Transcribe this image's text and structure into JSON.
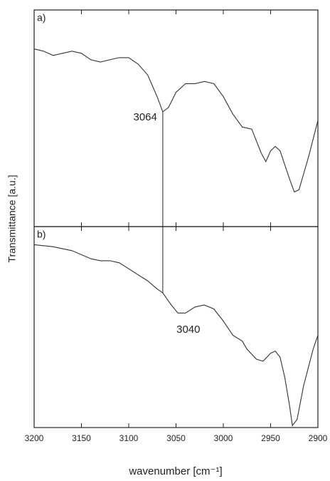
{
  "chart_data": {
    "type": "line",
    "x_label": "wavenumber [cm⁻¹]",
    "y_label": "Transmittance [a.u.]",
    "xlim": [
      3200,
      2900
    ],
    "xticks": [
      3200,
      3150,
      3100,
      3050,
      3000,
      2950,
      2900
    ],
    "color": "#333333",
    "panels": [
      {
        "label": "a)",
        "ylim": [
          0,
          100
        ],
        "x": [
          3200,
          3190,
          3180,
          3170,
          3160,
          3150,
          3140,
          3130,
          3120,
          3110,
          3100,
          3090,
          3080,
          3070,
          3064,
          3058,
          3050,
          3040,
          3030,
          3020,
          3010,
          3000,
          2990,
          2980,
          2970,
          2960,
          2955,
          2950,
          2945,
          2940,
          2930,
          2925,
          2920,
          2910,
          2900
        ],
        "values": [
          82,
          81,
          79,
          80,
          81,
          80,
          77,
          76,
          77,
          78,
          78,
          75,
          70,
          60,
          53,
          55,
          62,
          66,
          66,
          67,
          66,
          60,
          52,
          46,
          45,
          34,
          30,
          35,
          37,
          35,
          22,
          16,
          17,
          32,
          49
        ],
        "annotation": {
          "text": "3064",
          "x": 3064
        }
      },
      {
        "label": "b)",
        "ylim": [
          0,
          100
        ],
        "x": [
          3200,
          3180,
          3160,
          3140,
          3130,
          3120,
          3110,
          3100,
          3090,
          3080,
          3070,
          3064,
          3055,
          3048,
          3040,
          3030,
          3020,
          3010,
          3000,
          2990,
          2980,
          2975,
          2965,
          2958,
          2950,
          2945,
          2940,
          2935,
          2930,
          2927,
          2922,
          2915,
          2905,
          2900
        ],
        "values": [
          91,
          90,
          88,
          84,
          83,
          83,
          82,
          79,
          76,
          73,
          69,
          67,
          61,
          57,
          57,
          60,
          61,
          59,
          53,
          46,
          43,
          39,
          34,
          33,
          37,
          38,
          35,
          25,
          11,
          1,
          4,
          21,
          39,
          46
        ],
        "annotation": {
          "text": "3040",
          "x": 3040
        }
      }
    ]
  }
}
